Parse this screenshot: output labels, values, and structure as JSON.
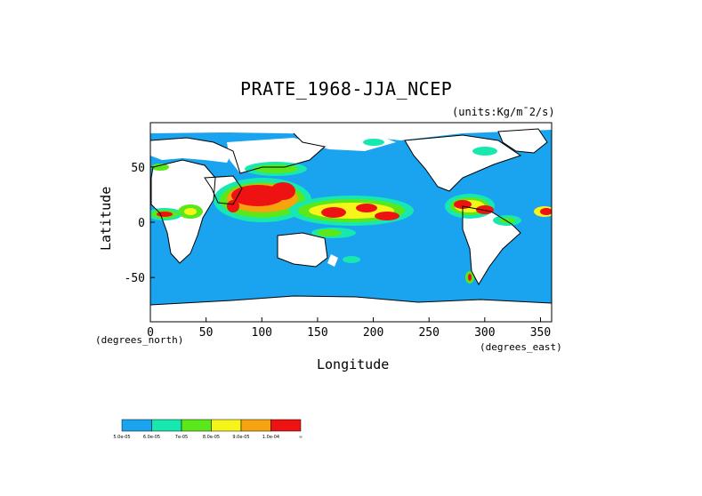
{
  "title": "PRATE_1968-JJA_NCEP",
  "units": "(units:Kg/m^2/s)",
  "units_display": "(units:Kg/m¯2/s)",
  "xaxis_label": "Longitude",
  "yaxis_label": "Latitude",
  "xaxis_unit_left": "(degrees_north)",
  "xaxis_unit_right": "(degrees_east)",
  "x_ticks": [
    "0",
    "50",
    "100",
    "150",
    "200",
    "250",
    "300",
    "350"
  ],
  "y_ticks": [
    "50",
    "0",
    "-50"
  ],
  "colors": {
    "ocean": "#1aa3ee",
    "land": "#ffffff",
    "level1": "#1aa3ee",
    "level2": "#17e8b0",
    "level3": "#5ae81a",
    "level4": "#f5f51a",
    "level5": "#f5a30f",
    "level6": "#ef1212"
  },
  "legend": {
    "labels": [
      "5.0e-05",
      "6.0e-05",
      "7e-05",
      "8.0e-05",
      "9.0e-05",
      "1.0e-04",
      "∞"
    ],
    "colors": [
      "#1aa3ee",
      "#17e8b0",
      "#5ae81a",
      "#f5f51a",
      "#f5a30f",
      "#ef1212"
    ]
  },
  "map": {
    "lon_range": [
      0,
      360
    ],
    "lat_range": [
      -90,
      90
    ]
  }
}
